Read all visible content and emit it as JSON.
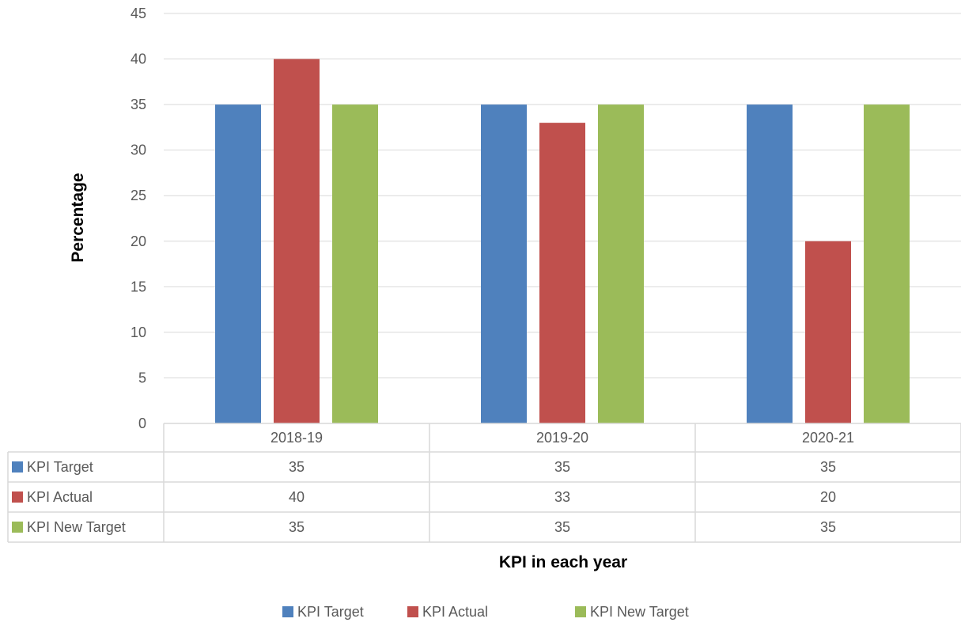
{
  "chart_data": {
    "type": "bar",
    "categories": [
      "2018-19",
      "2019-20",
      "2020-21"
    ],
    "series": [
      {
        "name": "KPI Target",
        "values": [
          35,
          35,
          35
        ],
        "color": "#4F81BD"
      },
      {
        "name": "KPI  Actual",
        "values": [
          40,
          33,
          20
        ],
        "color": "#C0504D"
      },
      {
        "name": "KPI  New Target",
        "values": [
          35,
          35,
          35
        ],
        "color": "#9BBB59"
      }
    ],
    "xlabel": "KPI in each year",
    "ylabel": "Percentage",
    "ylim": [
      0,
      45
    ],
    "yticks": [
      0,
      5,
      10,
      15,
      20,
      25,
      30,
      35,
      40,
      45
    ],
    "grid": true,
    "data_table": true,
    "legend_position": "bottom"
  }
}
